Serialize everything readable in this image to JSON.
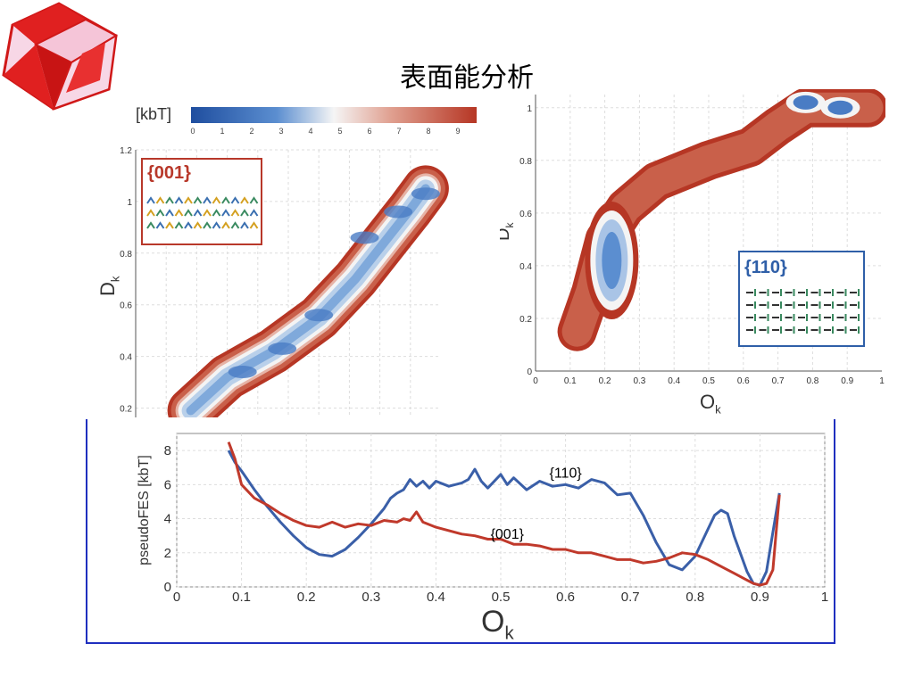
{
  "slide": {
    "title": "表面能分析",
    "accent_color": "#1f2fbf",
    "logo_icon": "red-crystal-cube-icon"
  },
  "colorbar": {
    "label": "[kbT]",
    "ticks": [
      "0",
      "1",
      "2",
      "3",
      "4",
      "5",
      "6",
      "7",
      "8",
      "9"
    ],
    "low_color": "#1f4e9f",
    "mid_color": "#f5f5f5",
    "high_color": "#b63624"
  },
  "chart_data": [
    {
      "type": "heatmap",
      "id": "fes-001",
      "inset_label": "{001}",
      "inset_color": "#b8382a",
      "ylabel": "Dk",
      "yticks": [
        "0.2",
        "0.4",
        "0.6",
        "0.8",
        "1",
        "1.2"
      ],
      "ylim": [
        0.15,
        1.2
      ],
      "xlim": [
        0,
        1
      ],
      "grid": true,
      "ridge": [
        [
          0.18,
          0.19
        ],
        [
          0.3,
          0.32
        ],
        [
          0.45,
          0.42
        ],
        [
          0.6,
          0.55
        ],
        [
          0.72,
          0.7
        ],
        [
          0.82,
          0.85
        ],
        [
          0.9,
          0.97
        ],
        [
          0.95,
          1.05
        ]
      ],
      "minima": [
        [
          0.35,
          0.34
        ],
        [
          0.48,
          0.43
        ],
        [
          0.6,
          0.56
        ],
        [
          0.75,
          0.86
        ],
        [
          0.86,
          0.96
        ],
        [
          0.95,
          1.03
        ]
      ]
    },
    {
      "type": "heatmap",
      "id": "fes-110",
      "inset_label": "{110}",
      "inset_color": "#2f5fa8",
      "xlabel": "Ok",
      "ylabel": "Dk",
      "xticks": [
        "0",
        "0.1",
        "0.2",
        "0.3",
        "0.4",
        "0.5",
        "0.6",
        "0.7",
        "0.8",
        "0.9",
        "1"
      ],
      "yticks": [
        "0",
        "0.2",
        "0.4",
        "0.6",
        "0.8",
        "1"
      ],
      "xlim": [
        0,
        1
      ],
      "ylim": [
        0,
        1.05
      ],
      "grid": true,
      "minima": [
        [
          0.22,
          0.42
        ],
        [
          0.78,
          1.02
        ],
        [
          0.88,
          1.0
        ]
      ]
    },
    {
      "type": "line",
      "id": "pseudo-fes",
      "xlabel": "Ok",
      "ylabel": "pseudoFES [kbT]",
      "xticks": [
        "0",
        "0.1",
        "0.2",
        "0.3",
        "0.4",
        "0.5",
        "0.6",
        "0.7",
        "0.8",
        "0.9",
        "1"
      ],
      "yticks": [
        "0",
        "2",
        "4",
        "6",
        "8"
      ],
      "xlim": [
        0,
        1
      ],
      "ylim": [
        0,
        9
      ],
      "grid": true,
      "series": [
        {
          "name": "{110}",
          "color": "#3a5fa8",
          "x": [
            0.08,
            0.09,
            0.1,
            0.12,
            0.14,
            0.16,
            0.18,
            0.2,
            0.22,
            0.24,
            0.26,
            0.28,
            0.3,
            0.32,
            0.33,
            0.34,
            0.35,
            0.36,
            0.37,
            0.38,
            0.39,
            0.4,
            0.42,
            0.44,
            0.45,
            0.46,
            0.47,
            0.48,
            0.5,
            0.51,
            0.52,
            0.54,
            0.56,
            0.58,
            0.6,
            0.62,
            0.64,
            0.66,
            0.68,
            0.7,
            0.72,
            0.74,
            0.76,
            0.78,
            0.8,
            0.82,
            0.83,
            0.84,
            0.85,
            0.86,
            0.88,
            0.89,
            0.9,
            0.91,
            0.92,
            0.93
          ],
          "y": [
            8.0,
            7.3,
            6.8,
            5.7,
            4.7,
            3.8,
            3.0,
            2.3,
            1.9,
            1.8,
            2.2,
            2.9,
            3.7,
            4.6,
            5.2,
            5.5,
            5.7,
            6.3,
            5.9,
            6.2,
            5.8,
            6.2,
            5.9,
            6.1,
            6.3,
            6.9,
            6.2,
            5.8,
            6.6,
            6.0,
            6.4,
            5.7,
            6.2,
            5.9,
            6.0,
            5.8,
            6.3,
            6.1,
            5.4,
            5.5,
            4.2,
            2.6,
            1.3,
            1.0,
            1.8,
            3.4,
            4.2,
            4.5,
            4.3,
            3.0,
            0.9,
            0.2,
            0.1,
            0.9,
            3.2,
            5.5
          ]
        },
        {
          "name": "{001}",
          "color": "#c0392b",
          "x": [
            0.08,
            0.09,
            0.1,
            0.12,
            0.14,
            0.16,
            0.18,
            0.2,
            0.22,
            0.24,
            0.26,
            0.28,
            0.3,
            0.32,
            0.34,
            0.35,
            0.36,
            0.37,
            0.38,
            0.4,
            0.42,
            0.44,
            0.46,
            0.48,
            0.5,
            0.52,
            0.54,
            0.56,
            0.58,
            0.6,
            0.62,
            0.64,
            0.66,
            0.68,
            0.7,
            0.72,
            0.74,
            0.76,
            0.78,
            0.8,
            0.82,
            0.84,
            0.86,
            0.88,
            0.89,
            0.9,
            0.91,
            0.92,
            0.93
          ],
          "y": [
            8.5,
            7.5,
            6.0,
            5.2,
            4.8,
            4.3,
            3.9,
            3.6,
            3.5,
            3.8,
            3.5,
            3.7,
            3.6,
            3.9,
            3.8,
            4.0,
            3.9,
            4.4,
            3.8,
            3.5,
            3.3,
            3.1,
            3.0,
            2.8,
            2.8,
            2.5,
            2.5,
            2.4,
            2.2,
            2.2,
            2.0,
            2.0,
            1.8,
            1.6,
            1.6,
            1.4,
            1.5,
            1.7,
            2.0,
            1.9,
            1.6,
            1.2,
            0.8,
            0.4,
            0.2,
            0.1,
            0.2,
            1.0,
            5.4
          ]
        }
      ],
      "annotations": [
        {
          "text": "{110}",
          "x": 0.6,
          "y": 6.0
        },
        {
          "text": "{001}",
          "x": 0.51,
          "y": 2.4
        }
      ]
    }
  ]
}
